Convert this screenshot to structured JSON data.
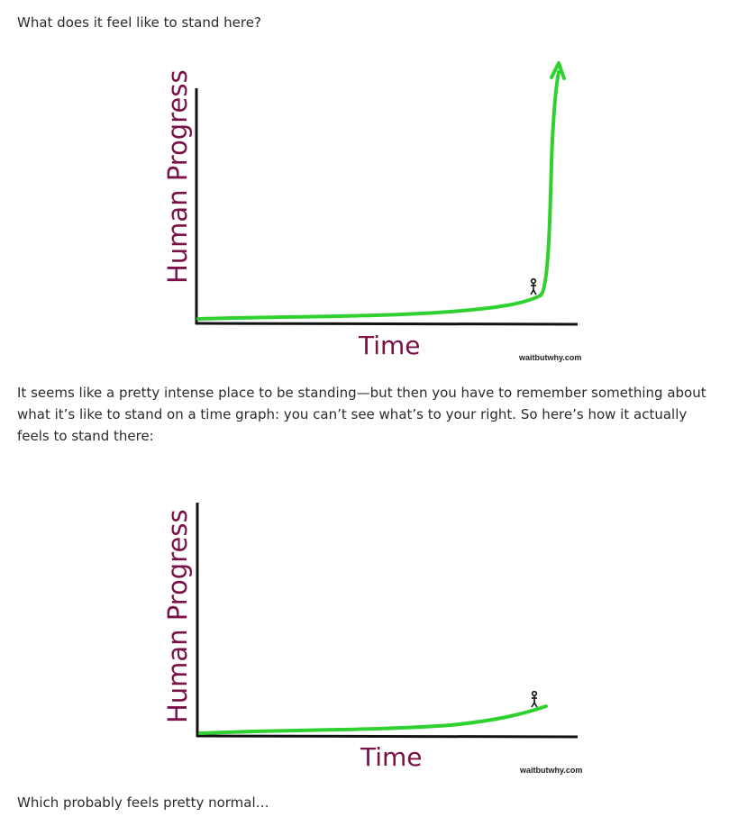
{
  "article": {
    "para1": "What does it feel like to stand here?",
    "para2": "It seems like a pretty intense place to be standing—but then you have to remember something about what it’s like to stand on a time graph: you can’t see what’s to your right. So here’s how it actually feels to stand there:",
    "para3": "Which probably feels pretty normal…"
  },
  "figures": [
    {
      "ylabel": "Human Progress",
      "xlabel": "Time",
      "credit": "waitbutwhy.com",
      "line_color": "#2fd12f",
      "axis_color": "#111111",
      "label_color": "#7a1048",
      "stick_figure": true,
      "arrow": true
    },
    {
      "ylabel": "Human Progress",
      "xlabel": "Time",
      "credit": "waitbutwhy.com",
      "line_color": "#2fd12f",
      "axis_color": "#111111",
      "label_color": "#7a1048",
      "stick_figure": true,
      "arrow": false
    }
  ]
}
